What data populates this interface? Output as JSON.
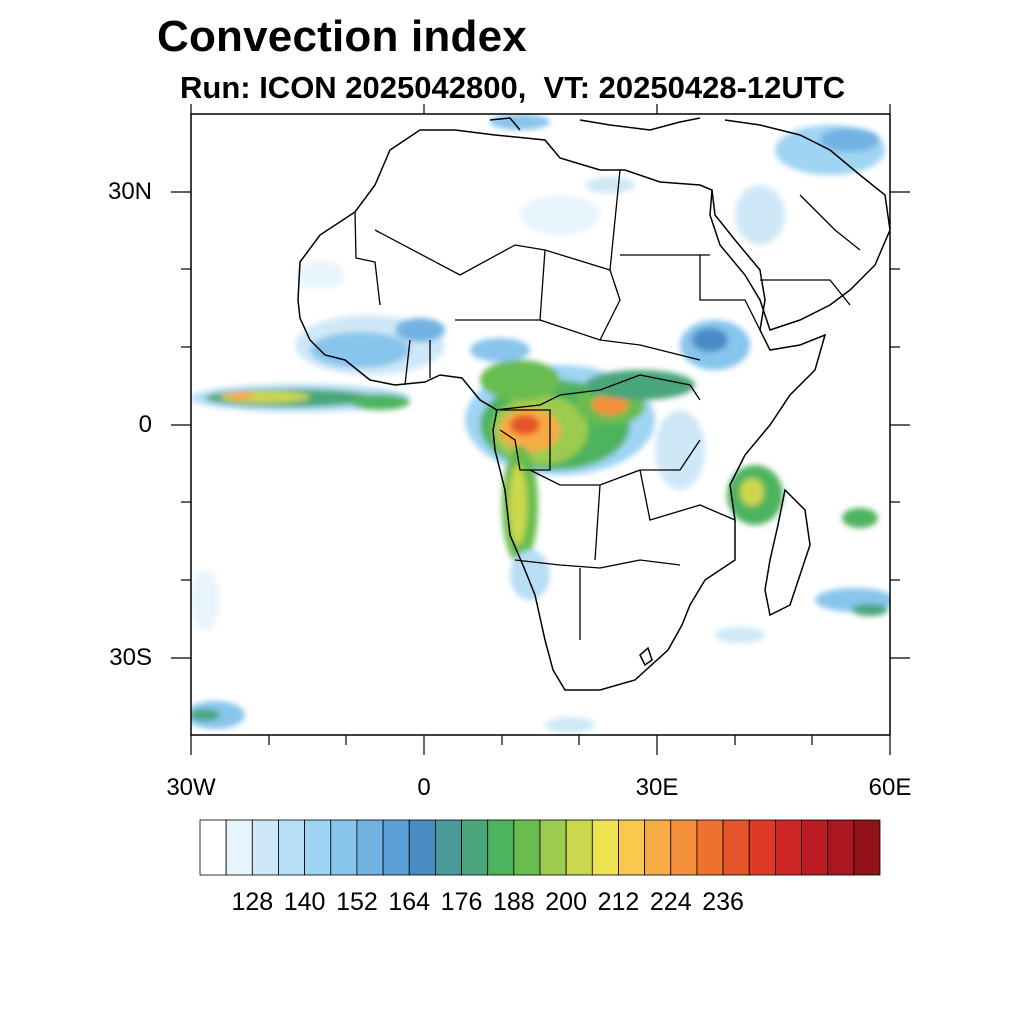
{
  "header": {
    "title": "Convection index",
    "subtitle": "Run: ICON 2025042800,  VT: 20250428-12UTC"
  },
  "axes": {
    "lat_labels": [
      "30N",
      "0",
      "30S"
    ],
    "lon_labels": [
      "30W",
      "0",
      "30E",
      "60E"
    ]
  },
  "colorbar": {
    "tick_labels": [
      "128",
      "140",
      "152",
      "164",
      "176",
      "188",
      "200",
      "212",
      "224",
      "236"
    ],
    "colors": [
      "#ffffff",
      "#e8f4fc",
      "#cfe8f7",
      "#b6def5",
      "#9fd4f3",
      "#88c5ec",
      "#72b2e3",
      "#5b9fd6",
      "#4a8bc4",
      "#4a9a9a",
      "#4aa57a",
      "#4db35e",
      "#69bc4f",
      "#9ccb4f",
      "#cbd84e",
      "#efe352",
      "#f9c94e",
      "#f7ab45",
      "#f38f3a",
      "#ee7130",
      "#e6542a",
      "#de3a27",
      "#cf2527",
      "#bd1b24",
      "#ab1620",
      "#92121a"
    ]
  },
  "map": {
    "ocean_color": "#ffffff",
    "land_outline_color": "#000000",
    "lat_range": [
      -40,
      40
    ],
    "lon_range": [
      -30,
      60
    ]
  }
}
